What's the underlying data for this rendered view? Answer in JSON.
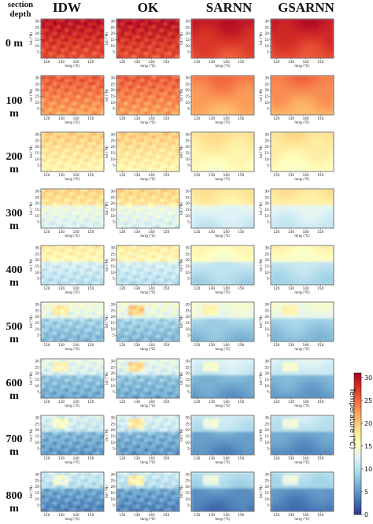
{
  "header": {
    "corner_line1": "section",
    "corner_line2": "depth"
  },
  "chart_data": {
    "type": "heatmap",
    "methods": [
      "IDW",
      "OK",
      "SARNN",
      "GSARNN"
    ],
    "depths": [
      "0 m",
      "100 m",
      "200 m",
      "300 m",
      "400 m",
      "500 m",
      "600 m",
      "700 m",
      "800 m"
    ],
    "panel_axes": {
      "xlabel": "long (°E)",
      "ylabel": "lat (°N)",
      "xticks": [
        120,
        130,
        140,
        150
      ],
      "yticks": [
        5,
        10,
        15,
        20,
        25,
        30
      ],
      "xlim": [
        116,
        159
      ],
      "ylim": [
        0,
        32
      ]
    },
    "colorbar": {
      "label": "Temperature (°C)",
      "ticks": [
        0,
        5,
        10,
        15,
        20,
        25,
        30
      ],
      "range": [
        0,
        31
      ],
      "colormap": "RdYlBu_r"
    },
    "approx_mean_temperature_C": [
      [
        28,
        28,
        28,
        28
      ],
      [
        24,
        24,
        23,
        23
      ],
      [
        18,
        18,
        17,
        17
      ],
      [
        15,
        15,
        14,
        14
      ],
      [
        13,
        13,
        12,
        12
      ],
      [
        10,
        10,
        10,
        10
      ],
      [
        9,
        9,
        8,
        8
      ],
      [
        8,
        8,
        7,
        7
      ],
      [
        7,
        7,
        6,
        6
      ]
    ]
  }
}
